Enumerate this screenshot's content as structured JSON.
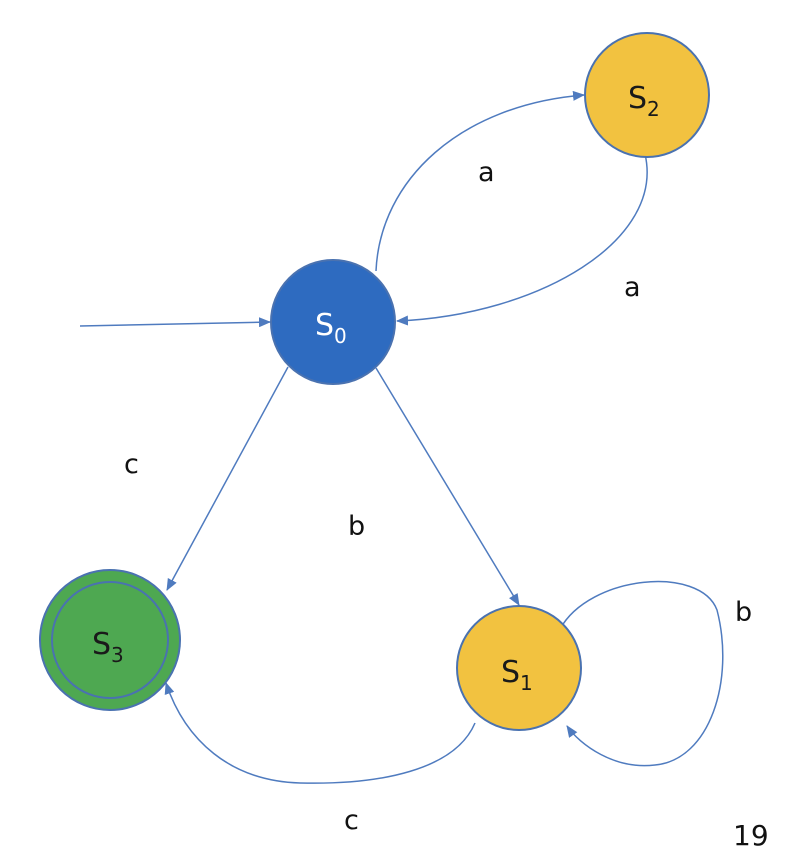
{
  "states": {
    "s0": {
      "label": "S",
      "sub": "0",
      "color": "#2e6bc0",
      "role": "start"
    },
    "s1": {
      "label": "S",
      "sub": "1",
      "color": "#f2c240"
    },
    "s2": {
      "label": "S",
      "sub": "2",
      "color": "#f2c240"
    },
    "s3": {
      "label": "S",
      "sub": "3",
      "color": "#4ea851",
      "role": "accepting"
    }
  },
  "transitions": {
    "s0_s2": {
      "from": "S0",
      "to": "S2",
      "label": "a"
    },
    "s2_s0": {
      "from": "S2",
      "to": "S0",
      "label": "a"
    },
    "s0_s1": {
      "from": "S0",
      "to": "S1",
      "label": "b"
    },
    "s0_s3": {
      "from": "S0",
      "to": "S3",
      "label": "c"
    },
    "s1_s1": {
      "from": "S1",
      "to": "S1",
      "label": "b"
    },
    "s1_s3": {
      "from": "S1",
      "to": "S3",
      "label": "c"
    }
  },
  "page_number": "19",
  "colors": {
    "edge": "#4f7bbf",
    "node_border": "#4a72b0"
  }
}
